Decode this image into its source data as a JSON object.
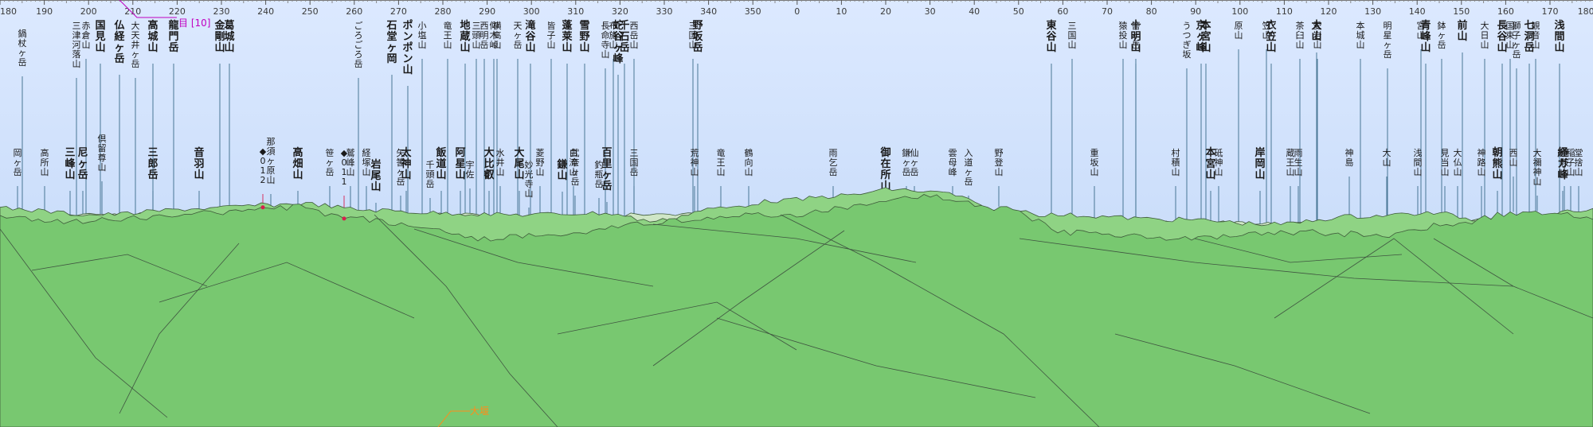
{
  "panorama": {
    "header_label": "目 [10]",
    "location_label": "大堰",
    "colors": {
      "sky_top": "#dce9ff",
      "sky_bottom": "#bcd4f6",
      "terrain": "#78c870",
      "terrain_line": "#4a5a46",
      "leader": "#3a6b8a",
      "marker": "#d6204e"
    }
  },
  "scale": {
    "ticks": [
      {
        "label": "180"
      },
      {
        "label": "190"
      },
      {
        "label": "200"
      },
      {
        "label": "210"
      },
      {
        "label": "220"
      },
      {
        "label": "230"
      },
      {
        "label": "240"
      },
      {
        "label": "250"
      },
      {
        "label": "260"
      },
      {
        "label": "270"
      },
      {
        "label": "280"
      },
      {
        "label": "290"
      },
      {
        "label": "300"
      },
      {
        "label": "310"
      },
      {
        "label": "320"
      },
      {
        "label": "330"
      },
      {
        "label": "340"
      },
      {
        "label": "350"
      },
      {
        "label": "0"
      },
      {
        "label": "10"
      },
      {
        "label": "20"
      },
      {
        "label": "30"
      },
      {
        "label": "40"
      },
      {
        "label": "50"
      },
      {
        "label": "60"
      },
      {
        "label": "70"
      },
      {
        "label": "80"
      },
      {
        "label": "90"
      },
      {
        "label": "100"
      },
      {
        "label": "110"
      },
      {
        "label": "120"
      },
      {
        "label": "130"
      },
      {
        "label": "140"
      },
      {
        "label": "150"
      },
      {
        "label": "160"
      },
      {
        "label": "170"
      },
      {
        "label": "180"
      }
    ]
  },
  "peaks": [
    {
      "name": "鍋杖ヶ岳",
      "bold": false
    },
    {
      "name": "岡ヶ岳",
      "bold": false
    },
    {
      "name": "高所山",
      "bold": false
    },
    {
      "name": "三津河落山",
      "bold": false
    },
    {
      "name": "三峰山",
      "bold": true
    },
    {
      "name": "赤倉山",
      "bold": false
    },
    {
      "name": "尼ヶ岳",
      "bold": true
    },
    {
      "name": "国見山",
      "bold": true
    },
    {
      "name": "倶留尊山",
      "bold": false
    },
    {
      "name": "仏経ヶ岳",
      "bold": true
    },
    {
      "name": "大天井ヶ岳",
      "bold": false
    },
    {
      "name": "高城山",
      "bold": true
    },
    {
      "name": "三郎岳",
      "bold": true
    },
    {
      "name": "龍門岳",
      "bold": true
    },
    {
      "name": "音羽山",
      "bold": true
    },
    {
      "name": "金剛山",
      "bold": true
    },
    {
      "name": "葛城山",
      "bold": true
    },
    {
      "name": "那須ヶ原山",
      "bold": false
    },
    {
      "name": "012",
      "bold": false
    },
    {
      "name": "高畑山",
      "bold": true
    },
    {
      "name": "ごろごろ岳",
      "bold": false
    },
    {
      "name": "笹ヶ岳",
      "bold": false
    },
    {
      "name": "011",
      "bold": false
    },
    {
      "name": "鷲峰山",
      "bold": false
    },
    {
      "name": "経塚山",
      "bold": false
    },
    {
      "name": "岩尾山",
      "bold": true
    },
    {
      "name": "石堂ヶ岡",
      "bold": true
    },
    {
      "name": "矢筈ヶ岳",
      "bold": false
    },
    {
      "name": "ポンポン山",
      "bold": true
    },
    {
      "name": "太神山",
      "bold": true
    },
    {
      "name": "小塩山",
      "bold": false
    },
    {
      "name": "千頭岳",
      "bold": false
    },
    {
      "name": "竜王山",
      "bold": false
    },
    {
      "name": "飯道山",
      "bold": true
    },
    {
      "name": "地蔵山",
      "bold": true
    },
    {
      "name": "阿星山",
      "bold": true
    },
    {
      "name": "三頭山",
      "bold": false
    },
    {
      "name": "宇佐",
      "bold": false
    },
    {
      "name": "西明岳",
      "bold": false
    },
    {
      "name": "大比叡",
      "bold": true
    },
    {
      "name": "横高山",
      "bold": false
    },
    {
      "name": "水井山",
      "bold": false
    },
    {
      "name": "仰木峠",
      "bold": false
    },
    {
      "name": "妙光寺山",
      "bold": false
    },
    {
      "name": "天ヶ岳",
      "bold": false
    },
    {
      "name": "大尾山",
      "bold": true
    },
    {
      "name": "滝谷山",
      "bold": true
    },
    {
      "name": "菱野山",
      "bold": false
    },
    {
      "name": "皆子山",
      "bold": false
    },
    {
      "name": "鎌山",
      "bold": true
    },
    {
      "name": "蓬莱山",
      "bold": true
    },
    {
      "name": "白滝山",
      "bold": false
    },
    {
      "name": "雪野山",
      "bold": true
    },
    {
      "name": "武奈ヶ岳",
      "bold": false
    },
    {
      "name": "長命寺山",
      "bold": false
    },
    {
      "name": "釣瓶岳",
      "bold": false
    },
    {
      "name": "蛇谷ヶ峰",
      "bold": true
    },
    {
      "name": "百里ヶ岳",
      "bold": true
    },
    {
      "name": "布施山",
      "bold": false
    },
    {
      "name": "千石岳",
      "bold": true
    },
    {
      "name": "三国岳",
      "bold": false
    },
    {
      "name": "西岳山",
      "bold": false
    },
    {
      "name": "三国山",
      "bold": false
    },
    {
      "name": "荒神山",
      "bold": false
    },
    {
      "name": "野坂岳",
      "bold": true
    },
    {
      "name": "竜王山",
      "bold": false
    },
    {
      "name": "鶴向山",
      "bold": false
    },
    {
      "name": "雨乞岳",
      "bold": false
    },
    {
      "name": "御在所山",
      "bold": true
    },
    {
      "name": "鎌ヶ岳",
      "bold": false
    },
    {
      "name": "仙ヶ岳",
      "bold": false
    },
    {
      "name": "雲母峰",
      "bold": false
    },
    {
      "name": "入道ヶ岳",
      "bold": false
    },
    {
      "name": "野登山",
      "bold": false
    },
    {
      "name": "東谷山",
      "bold": true
    },
    {
      "name": "三国山",
      "bold": false
    },
    {
      "name": "重坂山",
      "bold": false
    },
    {
      "name": "猿投山",
      "bold": false
    },
    {
      "name": "筈ヶ岳",
      "bold": false
    },
    {
      "name": "十明山",
      "bold": true
    },
    {
      "name": "村積山",
      "bold": false
    },
    {
      "name": "うつぎ坂",
      "bold": false
    },
    {
      "name": "京ヶ峰",
      "bold": true
    },
    {
      "name": "本宮山",
      "bold": true
    },
    {
      "name": "本宮山",
      "bold": true
    },
    {
      "name": "砥神山",
      "bold": false
    },
    {
      "name": "原山",
      "bold": false
    },
    {
      "name": "岸岡山",
      "bold": true
    },
    {
      "name": "笠山",
      "bold": false
    },
    {
      "name": "衣笠山",
      "bold": true
    },
    {
      "name": "蔵王山",
      "bold": false
    },
    {
      "name": "茶臼山",
      "bold": false
    },
    {
      "name": "雨生山",
      "bold": false
    },
    {
      "name": "大山",
      "bold": true
    },
    {
      "name": "愛岩山",
      "bold": false
    },
    {
      "name": "神島",
      "bold": false
    },
    {
      "name": "本城山",
      "bold": false
    },
    {
      "name": "大山",
      "bold": false
    },
    {
      "name": "明星ヶ岳",
      "bold": false
    },
    {
      "name": "浅間山",
      "bold": false
    },
    {
      "name": "宮山",
      "bold": false
    },
    {
      "name": "青峰山",
      "bold": true
    },
    {
      "name": "見当山",
      "bold": false
    },
    {
      "name": "鉢ヶ岳",
      "bold": false
    },
    {
      "name": "大仏山",
      "bold": false
    },
    {
      "name": "前山",
      "bold": true
    },
    {
      "name": "神路山",
      "bold": false
    },
    {
      "name": "大日山",
      "bold": false
    },
    {
      "name": "朝熊山",
      "bold": true
    },
    {
      "name": "国束山",
      "bold": false
    },
    {
      "name": "西山",
      "bold": false
    },
    {
      "name": "長谷山",
      "bold": true
    },
    {
      "name": "獅子ヶ岳",
      "bold": false
    },
    {
      "name": "七洞岳",
      "bold": true
    },
    {
      "name": "大禰神山",
      "bold": false
    },
    {
      "name": "観音山",
      "bold": false
    },
    {
      "name": "昼鞍山",
      "bold": false
    },
    {
      "name": "浅間山",
      "bold": true
    },
    {
      "name": "稲子山",
      "bold": false
    },
    {
      "name": "経ガ峰",
      "bold": true
    },
    {
      "name": "堂捨山",
      "bold": false
    }
  ]
}
